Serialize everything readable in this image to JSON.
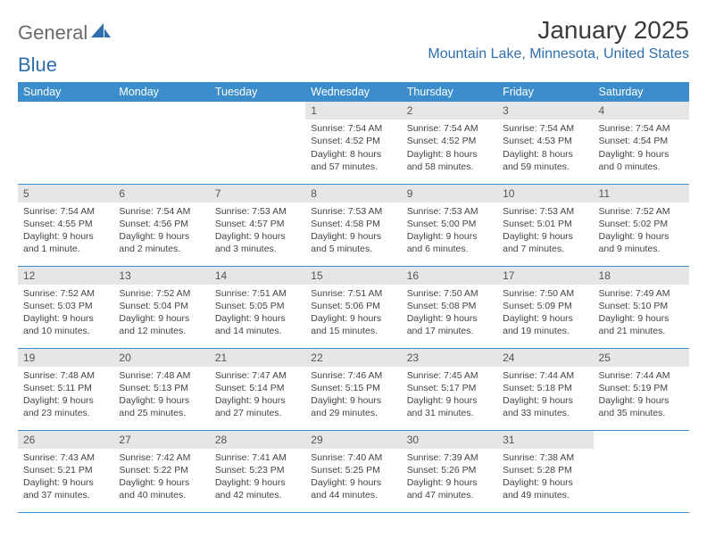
{
  "logo": {
    "text_a": "General",
    "text_b": "Blue",
    "color_a": "#6a6a6a",
    "color_b": "#2f6fab"
  },
  "header": {
    "month_title": "January 2025",
    "location": "Mountain Lake, Minnesota, United States",
    "title_color": "#3a3a3a",
    "title_fontsize": 28,
    "location_color": "#2f6fab",
    "location_fontsize": 16
  },
  "calendar": {
    "type": "table",
    "header_bg": "#3c8dcc",
    "header_fg": "#ffffff",
    "daynum_bg": "#e6e6e6",
    "row_border_color": "#3c8dcc",
    "body_fontsize": 10.5,
    "columns": [
      "Sunday",
      "Monday",
      "Tuesday",
      "Wednesday",
      "Thursday",
      "Friday",
      "Saturday"
    ],
    "weeks": [
      [
        null,
        null,
        null,
        {
          "n": "1",
          "sr": "7:54 AM",
          "ss": "4:52 PM",
          "dl": "8 hours and 57 minutes."
        },
        {
          "n": "2",
          "sr": "7:54 AM",
          "ss": "4:52 PM",
          "dl": "8 hours and 58 minutes."
        },
        {
          "n": "3",
          "sr": "7:54 AM",
          "ss": "4:53 PM",
          "dl": "8 hours and 59 minutes."
        },
        {
          "n": "4",
          "sr": "7:54 AM",
          "ss": "4:54 PM",
          "dl": "9 hours and 0 minutes."
        }
      ],
      [
        {
          "n": "5",
          "sr": "7:54 AM",
          "ss": "4:55 PM",
          "dl": "9 hours and 1 minute."
        },
        {
          "n": "6",
          "sr": "7:54 AM",
          "ss": "4:56 PM",
          "dl": "9 hours and 2 minutes."
        },
        {
          "n": "7",
          "sr": "7:53 AM",
          "ss": "4:57 PM",
          "dl": "9 hours and 3 minutes."
        },
        {
          "n": "8",
          "sr": "7:53 AM",
          "ss": "4:58 PM",
          "dl": "9 hours and 5 minutes."
        },
        {
          "n": "9",
          "sr": "7:53 AM",
          "ss": "5:00 PM",
          "dl": "9 hours and 6 minutes."
        },
        {
          "n": "10",
          "sr": "7:53 AM",
          "ss": "5:01 PM",
          "dl": "9 hours and 7 minutes."
        },
        {
          "n": "11",
          "sr": "7:52 AM",
          "ss": "5:02 PM",
          "dl": "9 hours and 9 minutes."
        }
      ],
      [
        {
          "n": "12",
          "sr": "7:52 AM",
          "ss": "5:03 PM",
          "dl": "9 hours and 10 minutes."
        },
        {
          "n": "13",
          "sr": "7:52 AM",
          "ss": "5:04 PM",
          "dl": "9 hours and 12 minutes."
        },
        {
          "n": "14",
          "sr": "7:51 AM",
          "ss": "5:05 PM",
          "dl": "9 hours and 14 minutes."
        },
        {
          "n": "15",
          "sr": "7:51 AM",
          "ss": "5:06 PM",
          "dl": "9 hours and 15 minutes."
        },
        {
          "n": "16",
          "sr": "7:50 AM",
          "ss": "5:08 PM",
          "dl": "9 hours and 17 minutes."
        },
        {
          "n": "17",
          "sr": "7:50 AM",
          "ss": "5:09 PM",
          "dl": "9 hours and 19 minutes."
        },
        {
          "n": "18",
          "sr": "7:49 AM",
          "ss": "5:10 PM",
          "dl": "9 hours and 21 minutes."
        }
      ],
      [
        {
          "n": "19",
          "sr": "7:48 AM",
          "ss": "5:11 PM",
          "dl": "9 hours and 23 minutes."
        },
        {
          "n": "20",
          "sr": "7:48 AM",
          "ss": "5:13 PM",
          "dl": "9 hours and 25 minutes."
        },
        {
          "n": "21",
          "sr": "7:47 AM",
          "ss": "5:14 PM",
          "dl": "9 hours and 27 minutes."
        },
        {
          "n": "22",
          "sr": "7:46 AM",
          "ss": "5:15 PM",
          "dl": "9 hours and 29 minutes."
        },
        {
          "n": "23",
          "sr": "7:45 AM",
          "ss": "5:17 PM",
          "dl": "9 hours and 31 minutes."
        },
        {
          "n": "24",
          "sr": "7:44 AM",
          "ss": "5:18 PM",
          "dl": "9 hours and 33 minutes."
        },
        {
          "n": "25",
          "sr": "7:44 AM",
          "ss": "5:19 PM",
          "dl": "9 hours and 35 minutes."
        }
      ],
      [
        {
          "n": "26",
          "sr": "7:43 AM",
          "ss": "5:21 PM",
          "dl": "9 hours and 37 minutes."
        },
        {
          "n": "27",
          "sr": "7:42 AM",
          "ss": "5:22 PM",
          "dl": "9 hours and 40 minutes."
        },
        {
          "n": "28",
          "sr": "7:41 AM",
          "ss": "5:23 PM",
          "dl": "9 hours and 42 minutes."
        },
        {
          "n": "29",
          "sr": "7:40 AM",
          "ss": "5:25 PM",
          "dl": "9 hours and 44 minutes."
        },
        {
          "n": "30",
          "sr": "7:39 AM",
          "ss": "5:26 PM",
          "dl": "9 hours and 47 minutes."
        },
        {
          "n": "31",
          "sr": "7:38 AM",
          "ss": "5:28 PM",
          "dl": "9 hours and 49 minutes."
        },
        null
      ]
    ],
    "labels": {
      "sunrise": "Sunrise:",
      "sunset": "Sunset:",
      "daylight": "Daylight:"
    }
  }
}
